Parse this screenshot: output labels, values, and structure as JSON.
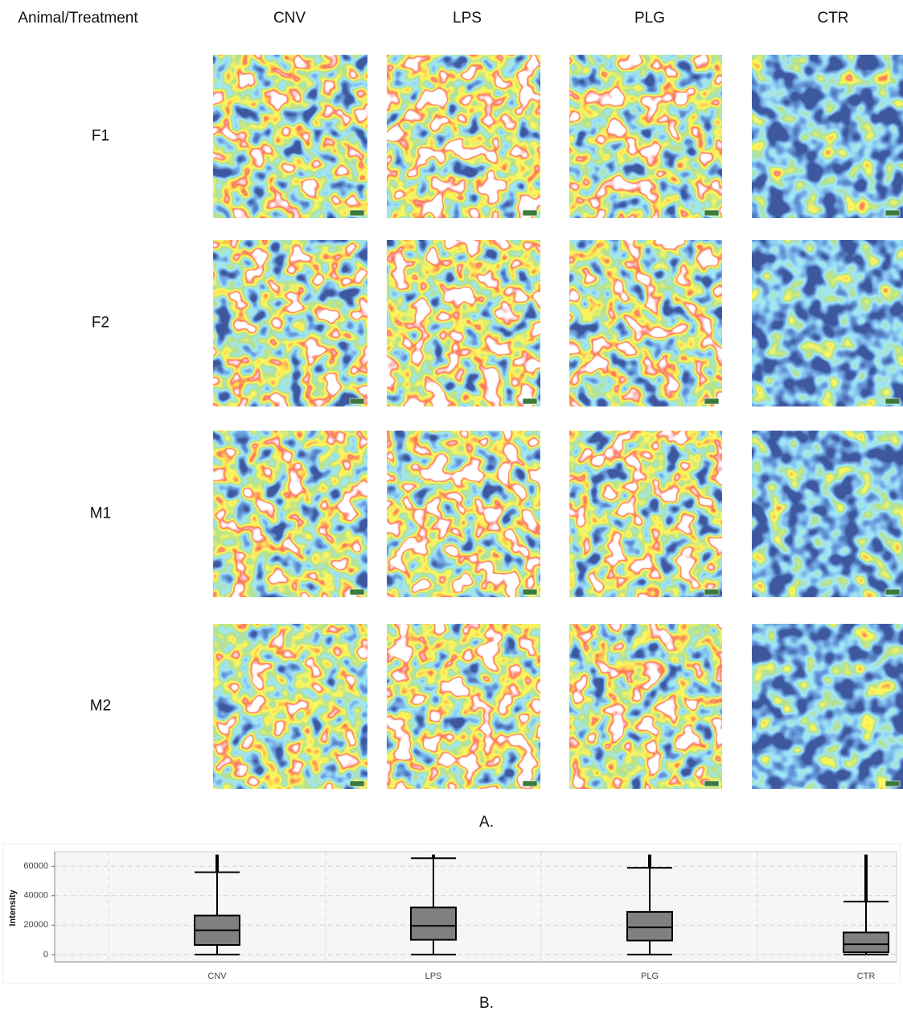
{
  "figure": {
    "header": "Animal/Treatment",
    "columns": [
      "CNV",
      "LPS",
      "PLG",
      "CTR"
    ],
    "rows": [
      "F1",
      "F2",
      "M1",
      "M2"
    ],
    "caption_a": "A.",
    "caption_b": "B."
  },
  "chart_data": {
    "type": "box",
    "ylabel": "Intensity",
    "categories": [
      "CNV",
      "LPS",
      "PLG",
      "CTR"
    ],
    "whisker_low": [
      0,
      0,
      0,
      0
    ],
    "q1": [
      6500,
      10000,
      9500,
      1500
    ],
    "median": [
      16500,
      19500,
      18500,
      7000
    ],
    "q3": [
      26500,
      32000,
      29000,
      15000
    ],
    "whisker_high": [
      56000,
      65500,
      59000,
      36000
    ],
    "max": [
      68000,
      68000,
      68000,
      68000
    ],
    "ylim": [
      -5000,
      70000
    ],
    "yticks": [
      0,
      20000,
      40000,
      60000
    ],
    "grid": true,
    "color": "#808080"
  }
}
